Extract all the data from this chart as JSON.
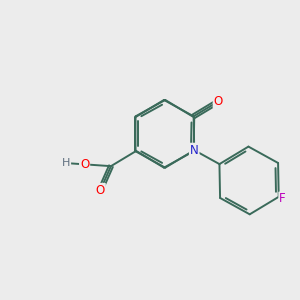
{
  "background_color": "#ececec",
  "bond_color": "#3a6a5a",
  "bond_width": 1.4,
  "atom_colors": {
    "O": "#ff0000",
    "N": "#2222cc",
    "F": "#bb00bb",
    "H": "#607080",
    "C": "#3a6a5a"
  },
  "font_size": 8.5,
  "xlim": [
    0,
    10
  ],
  "ylim": [
    0,
    10
  ]
}
